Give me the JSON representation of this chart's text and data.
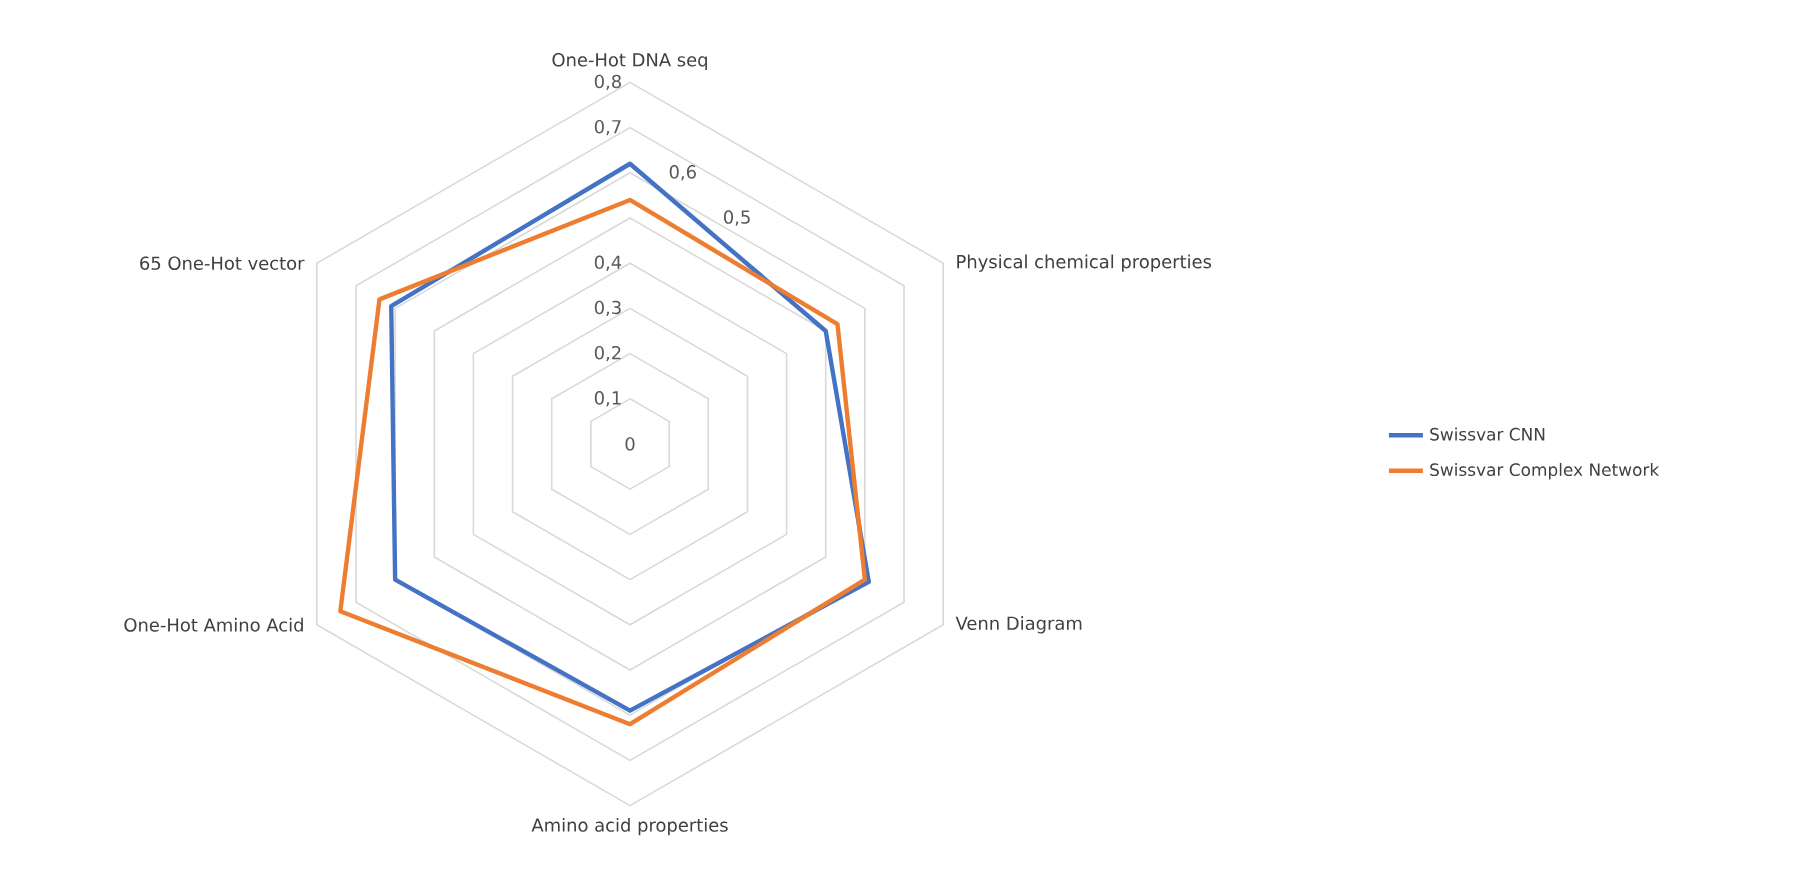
{
  "chart_data": {
    "type": "radar",
    "categories": [
      "One-Hot DNA seq",
      "Physical chemical properties",
      "Venn Diagram",
      "Amino acid properties",
      "One-Hot Amino Acid",
      "65 One-Hot vector"
    ],
    "series": [
      {
        "name": "Swissvar CNN",
        "color": "#4472c4",
        "values": [
          0.62,
          0.5,
          0.61,
          0.59,
          0.6,
          0.61
        ]
      },
      {
        "name": "Swissvar Complex Network",
        "color": "#ed7d31",
        "values": [
          0.54,
          0.53,
          0.6,
          0.62,
          0.74,
          0.64
        ]
      }
    ],
    "ylim": [
      0,
      0.8
    ],
    "yticks": [
      {
        "value": 0,
        "label": "0"
      },
      {
        "value": 0.1,
        "label": "0,1"
      },
      {
        "value": 0.2,
        "label": "0,2"
      },
      {
        "value": 0.3,
        "label": "0,3"
      },
      {
        "value": 0.4,
        "label": "0,4"
      },
      {
        "value": 0.5,
        "label": "0,5"
      },
      {
        "value": 0.6,
        "label": "0,6"
      },
      {
        "value": 0.7,
        "label": "0,7"
      },
      {
        "value": 0.8,
        "label": "0,8"
      }
    ],
    "grid": true,
    "legend": "right"
  }
}
